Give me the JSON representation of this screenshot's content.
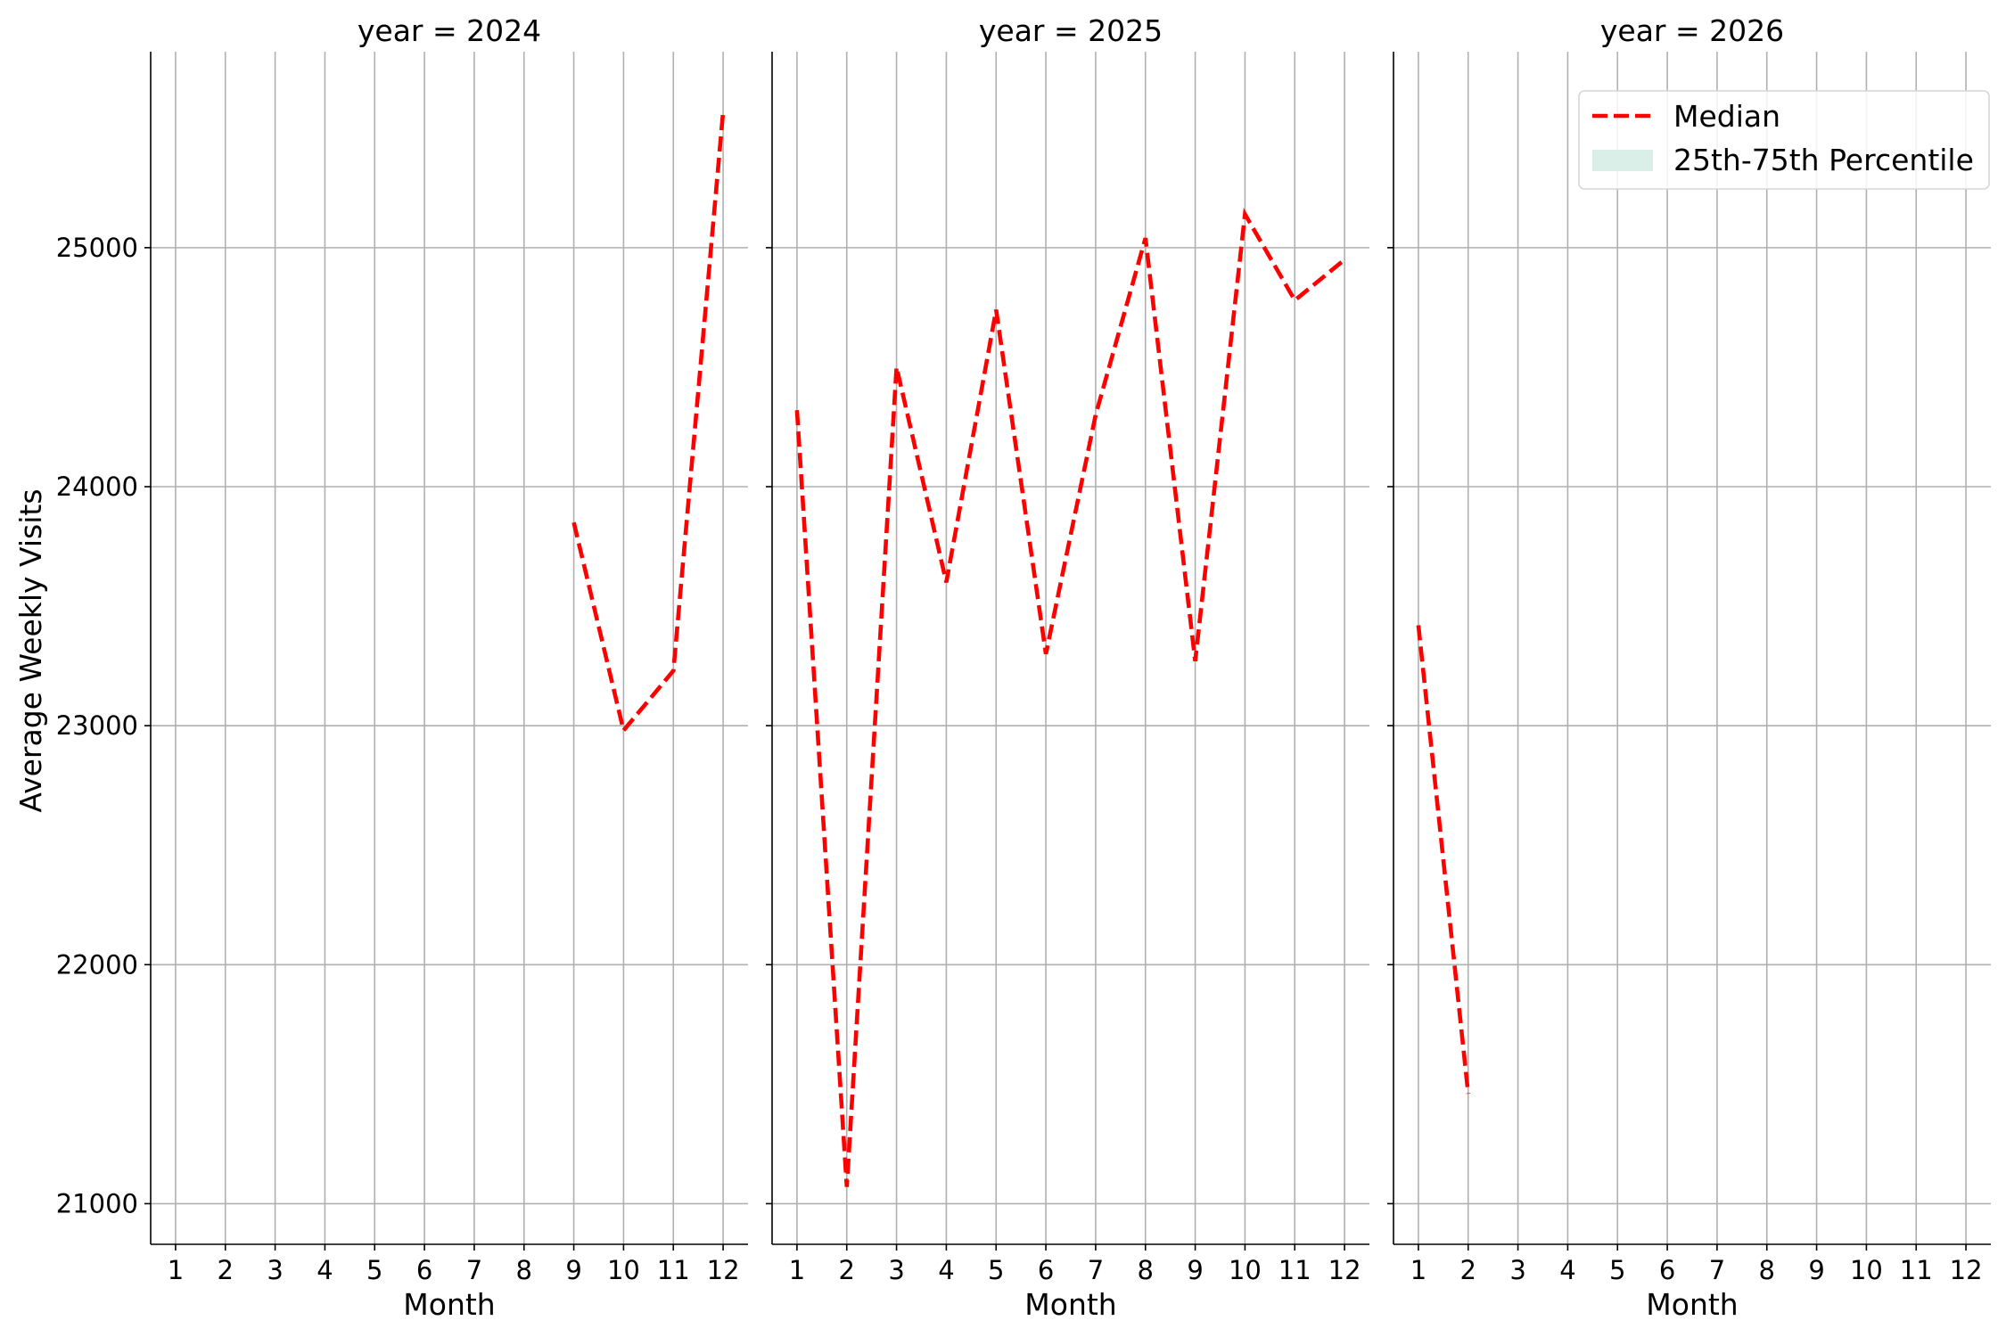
{
  "chart_data": {
    "type": "line",
    "ylabel": "Average Weekly Visits",
    "ylim": [
      20830,
      25820
    ],
    "yticks": [
      21000,
      22000,
      23000,
      24000,
      25000
    ],
    "grid": true,
    "legend": {
      "placement": "top-right",
      "entries": [
        {
          "label": "Median",
          "style": "dashed-line",
          "color": "#ff0000"
        },
        {
          "label": "25th-75th Percentile",
          "style": "patch",
          "color": "#d9efe8"
        }
      ]
    },
    "panels": [
      {
        "title": "year = 2024",
        "xlabel": "Month",
        "x_ticks": [
          "1",
          "2",
          "3",
          "4",
          "5",
          "6",
          "7",
          "8",
          "9",
          "10",
          "11",
          "12"
        ],
        "series": [
          {
            "name": "Median",
            "color": "#ff0000",
            "x": [
              9,
              10,
              11,
              12
            ],
            "y": [
              23850,
              22980,
              23230,
              25570
            ]
          }
        ]
      },
      {
        "title": "year = 2025",
        "xlabel": "Month",
        "x_ticks": [
          "1",
          "2",
          "3",
          "4",
          "5",
          "6",
          "7",
          "8",
          "9",
          "10",
          "11",
          "12"
        ],
        "series": [
          {
            "name": "Median",
            "color": "#ff0000",
            "x": [
              1,
              2,
              3,
              4,
              5,
              6,
              7,
              8,
              9,
              10,
              11,
              12
            ],
            "y": [
              24320,
              21070,
              24500,
              23600,
              24740,
              23300,
              24300,
              25040,
              23270,
              25140,
              24780,
              24950
            ]
          }
        ]
      },
      {
        "title": "year = 2026",
        "xlabel": "Month",
        "x_ticks": [
          "1",
          "2",
          "3",
          "4",
          "5",
          "6",
          "7",
          "8",
          "9",
          "10",
          "11",
          "12"
        ],
        "series": [
          {
            "name": "Median",
            "color": "#ff0000",
            "x": [
              1,
              2
            ],
            "y": [
              23420,
              21460
            ]
          }
        ]
      }
    ]
  }
}
